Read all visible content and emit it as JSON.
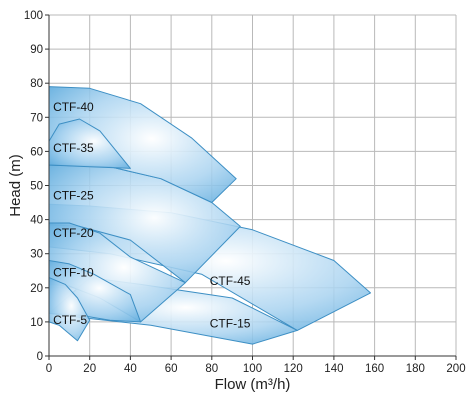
{
  "chart_data": {
    "type": "area",
    "title": "",
    "xlabel": "Flow (m³/h)",
    "ylabel": "Head (m)",
    "xlim": [
      0,
      200
    ],
    "ylim": [
      0,
      100
    ],
    "x_ticks": [
      0,
      20,
      40,
      60,
      80,
      100,
      120,
      140,
      160,
      180,
      200
    ],
    "y_ticks": [
      0,
      10,
      20,
      30,
      40,
      50,
      60,
      70,
      80,
      90,
      100
    ],
    "grid": true,
    "colors": {
      "edge": "#3d8fc4",
      "fill_light": "#ffffff",
      "fill_dark": "#5aa9dc"
    },
    "regions": [
      {
        "label": "CTF-15",
        "label_at": [
          79,
          9.5
        ],
        "polygon": [
          [
            0,
            12.5
          ],
          [
            20,
            11
          ],
          [
            50,
            9
          ],
          [
            100,
            3.5
          ],
          [
            122,
            7.5
          ],
          [
            90,
            17
          ],
          [
            45,
            21
          ],
          [
            20,
            23
          ]
        ]
      },
      {
        "label": "CTF-45",
        "label_at": [
          79,
          22
        ],
        "polygon": [
          [
            0,
            32
          ],
          [
            30,
            30
          ],
          [
            75,
            24
          ],
          [
            122,
            7.5
          ],
          [
            158,
            18.5
          ],
          [
            140,
            28
          ],
          [
            100,
            37
          ],
          [
            60,
            42
          ],
          [
            20,
            44
          ],
          [
            0,
            44.5
          ]
        ]
      },
      {
        "label": "CTF-25",
        "label_at": [
          2,
          47
        ],
        "polygon": [
          [
            0,
            56
          ],
          [
            30,
            55.5
          ],
          [
            55,
            52
          ],
          [
            80,
            45
          ],
          [
            94,
            38
          ],
          [
            67,
            21.5
          ],
          [
            40,
            34
          ],
          [
            15,
            38
          ],
          [
            0,
            38.5
          ]
        ]
      },
      {
        "label": "CTF-40",
        "label_at": [
          2,
          73
        ],
        "polygon": [
          [
            0,
            79
          ],
          [
            20,
            78.5
          ],
          [
            45,
            74
          ],
          [
            70,
            64
          ],
          [
            92,
            52
          ],
          [
            80,
            45
          ],
          [
            55,
            52
          ],
          [
            30,
            55.5
          ],
          [
            0,
            56
          ]
        ]
      },
      {
        "label": "CTF-35",
        "label_at": [
          2,
          61
        ],
        "polygon": [
          [
            0,
            63
          ],
          [
            5,
            68
          ],
          [
            15,
            69.5
          ],
          [
            25,
            66
          ],
          [
            40,
            55
          ],
          [
            20,
            55.5
          ],
          [
            0,
            56
          ]
        ]
      },
      {
        "label": "CTF-20",
        "label_at": [
          2,
          36
        ],
        "polygon": [
          [
            0,
            39
          ],
          [
            10,
            39
          ],
          [
            25,
            36
          ],
          [
            40,
            29
          ],
          [
            67,
            21.5
          ],
          [
            45,
            10
          ],
          [
            25,
            17
          ],
          [
            10,
            20.5
          ],
          [
            0,
            21
          ]
        ]
      },
      {
        "label": "CTF-10",
        "label_at": [
          2,
          24.5
        ],
        "polygon": [
          [
            0,
            28
          ],
          [
            10,
            27
          ],
          [
            22,
            24
          ],
          [
            40,
            18
          ],
          [
            45,
            10
          ],
          [
            30,
            10.5
          ],
          [
            15,
            12
          ],
          [
            0,
            12.5
          ]
        ]
      },
      {
        "label": "CTF-5",
        "label_at": [
          2,
          10.5
        ],
        "polygon": [
          [
            0,
            23
          ],
          [
            8,
            21
          ],
          [
            14,
            17
          ],
          [
            20,
            10.5
          ],
          [
            14,
            4.5
          ],
          [
            5,
            9
          ],
          [
            0,
            10
          ]
        ]
      }
    ]
  }
}
